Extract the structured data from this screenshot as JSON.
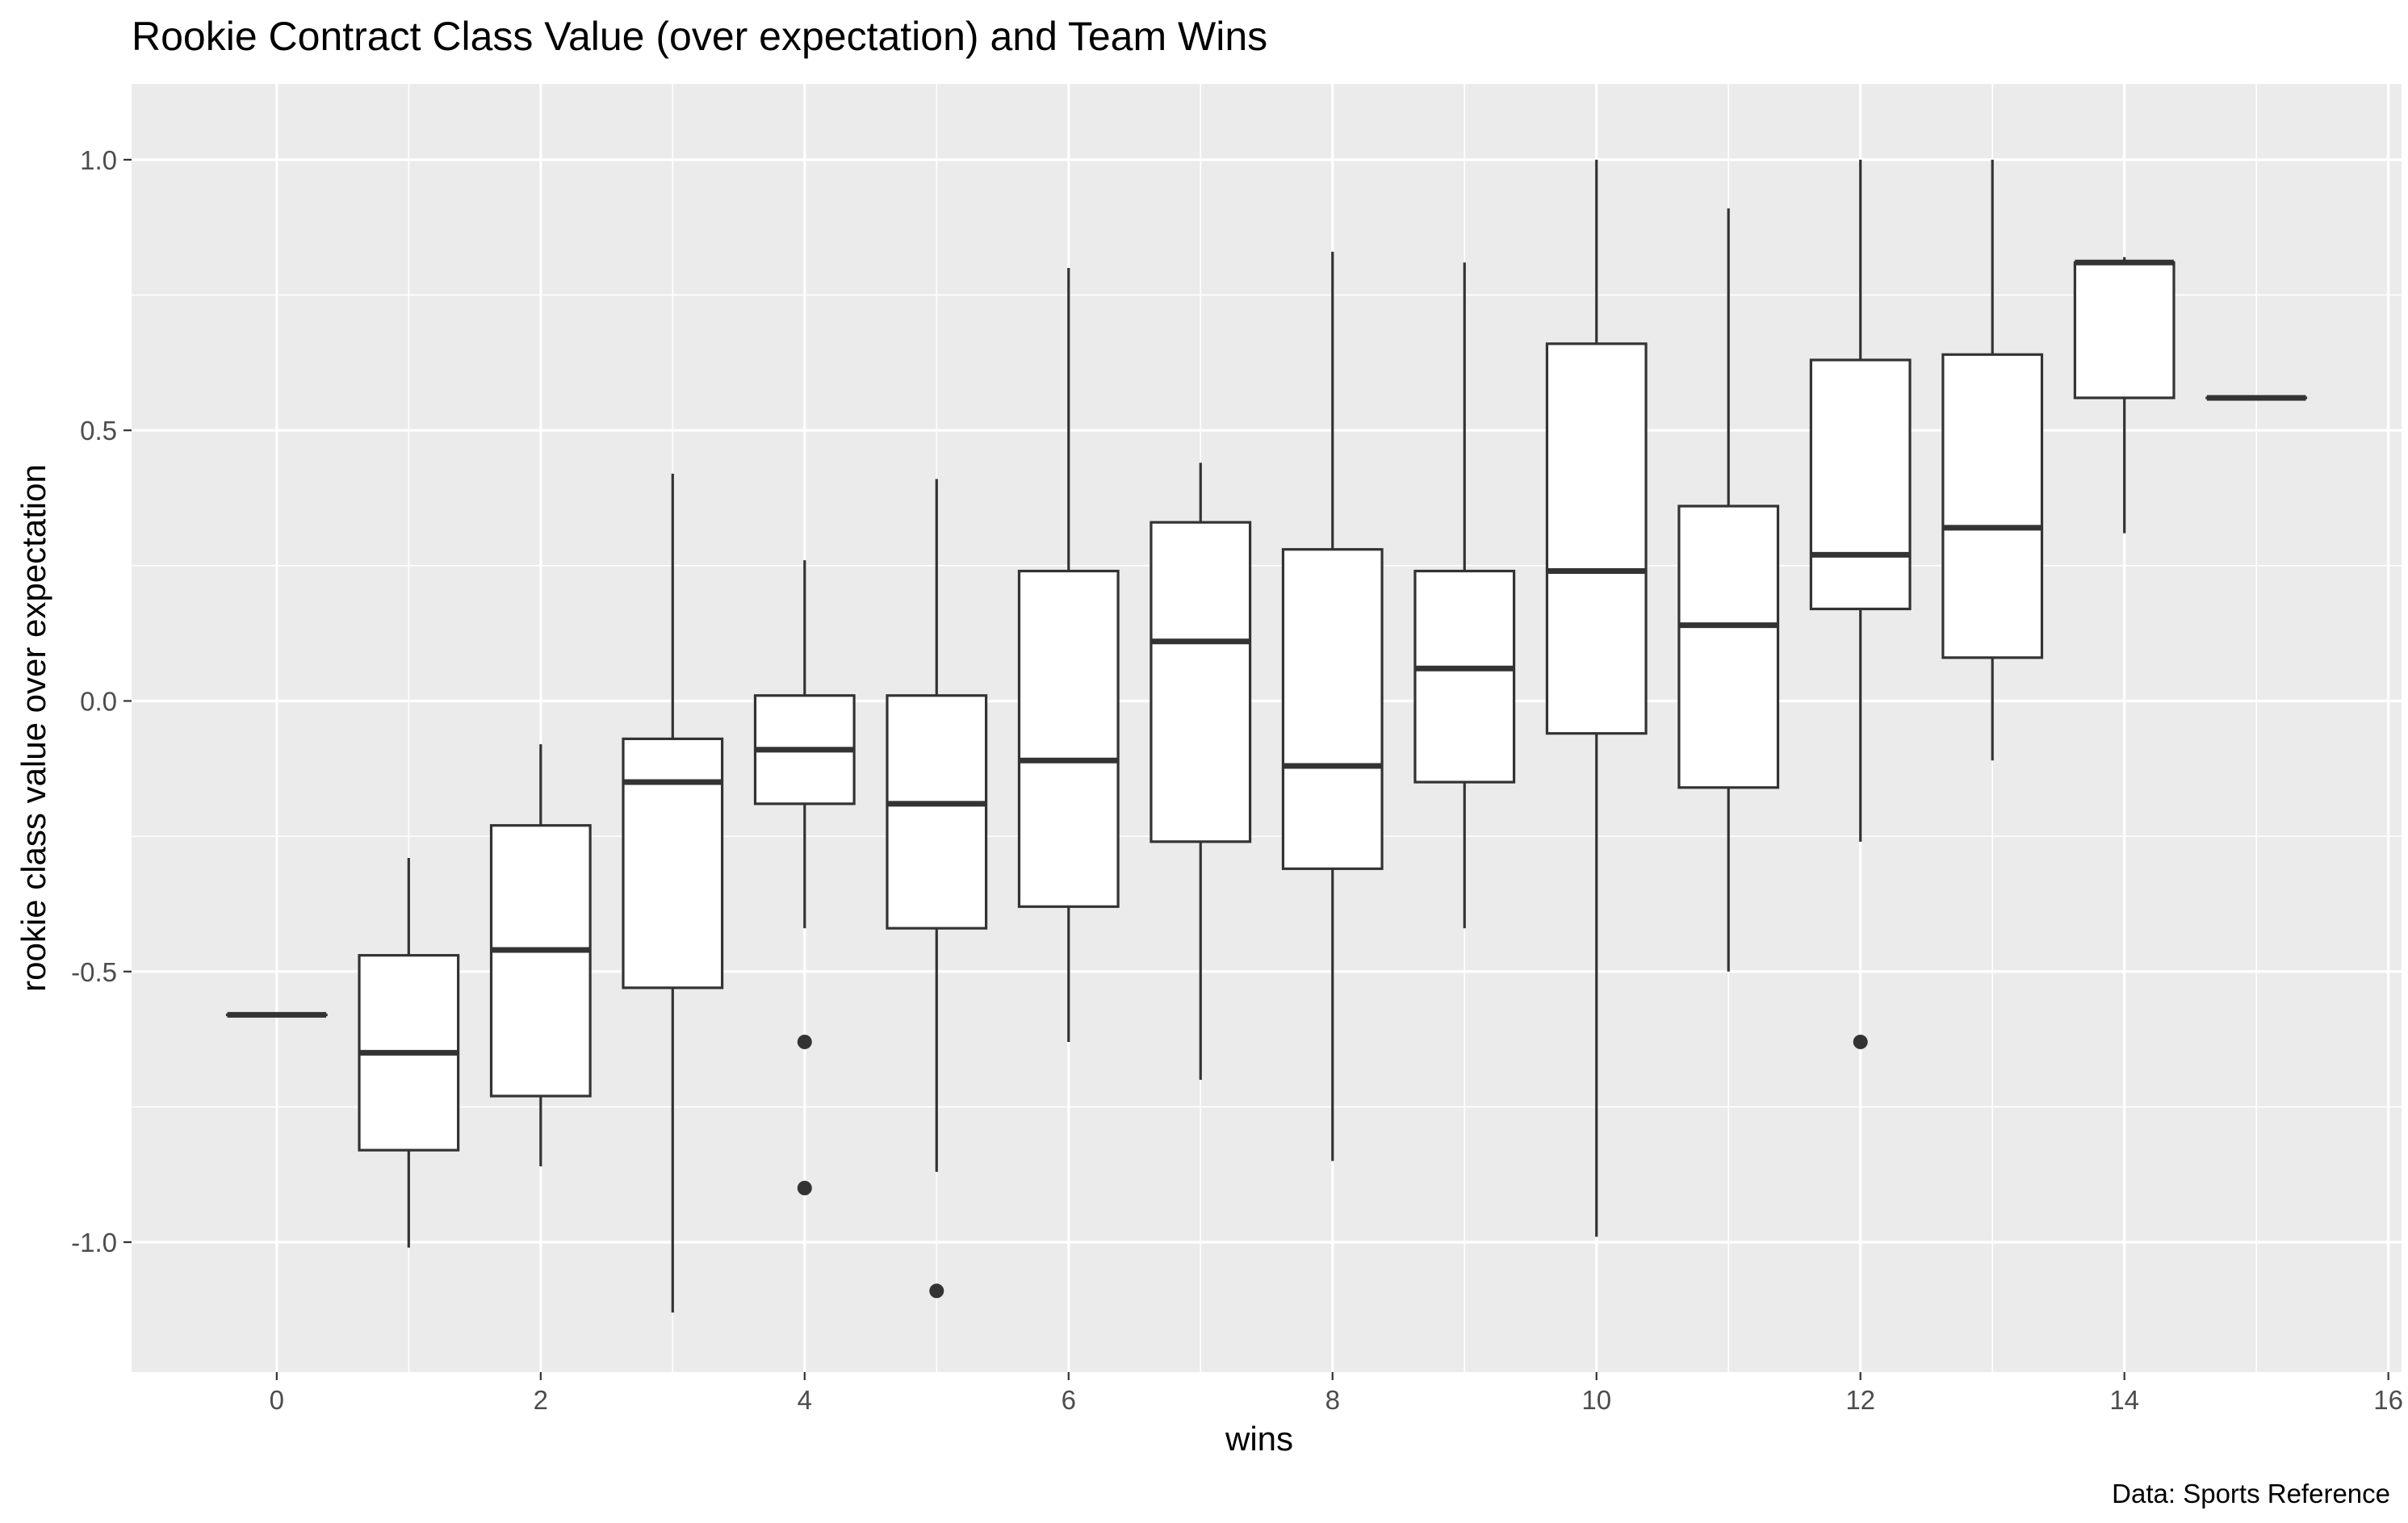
{
  "chart_data": {
    "type": "boxplot",
    "title": "Rookie Contract Class Value (over expectation) and Team Wins",
    "xlabel": "wins",
    "ylabel": "rookie class value over expectation",
    "caption": "Data: Sports Reference",
    "xlim": [
      -1.1,
      16.1
    ],
    "ylim": [
      -1.24,
      1.14
    ],
    "x_ticks": [
      0,
      2,
      4,
      6,
      8,
      10,
      12,
      14,
      16
    ],
    "x_tick_labels": [
      "0",
      "2",
      "4",
      "6",
      "8",
      "10",
      "12",
      "14",
      "16"
    ],
    "y_ticks": [
      -1.0,
      -0.5,
      0.0,
      0.5,
      1.0
    ],
    "y_tick_labels": [
      "-1.0",
      "-0.5",
      "0.0",
      "0.5",
      "1.0"
    ],
    "grid": true,
    "colors": {
      "panel": "#ebebeb",
      "grid": "#ffffff",
      "box_fill": "#ffffff",
      "box_line": "#333333"
    },
    "boxes": [
      {
        "x": 0,
        "whisker_low": -0.58,
        "q1": -0.58,
        "median": -0.58,
        "q3": -0.58,
        "whisker_high": -0.58,
        "outliers": []
      },
      {
        "x": 1,
        "whisker_low": -1.01,
        "q1": -0.83,
        "median": -0.65,
        "q3": -0.47,
        "whisker_high": -0.29,
        "outliers": []
      },
      {
        "x": 2,
        "whisker_low": -0.86,
        "q1": -0.73,
        "median": -0.46,
        "q3": -0.23,
        "whisker_high": -0.08,
        "outliers": []
      },
      {
        "x": 3,
        "whisker_low": -1.13,
        "q1": -0.53,
        "median": -0.15,
        "q3": -0.07,
        "whisker_high": 0.42,
        "outliers": []
      },
      {
        "x": 4,
        "whisker_low": -0.42,
        "q1": -0.19,
        "median": -0.09,
        "q3": 0.01,
        "whisker_high": 0.26,
        "outliers": [
          -0.63,
          -0.9
        ]
      },
      {
        "x": 5,
        "whisker_low": -0.87,
        "q1": -0.42,
        "median": -0.19,
        "q3": 0.01,
        "whisker_high": 0.41,
        "outliers": [
          -1.09
        ]
      },
      {
        "x": 6,
        "whisker_low": -0.63,
        "q1": -0.38,
        "median": -0.11,
        "q3": 0.24,
        "whisker_high": 0.8,
        "outliers": []
      },
      {
        "x": 7,
        "whisker_low": -0.7,
        "q1": -0.26,
        "median": 0.11,
        "q3": 0.33,
        "whisker_high": 0.44,
        "outliers": []
      },
      {
        "x": 8,
        "whisker_low": -0.85,
        "q1": -0.31,
        "median": -0.12,
        "q3": 0.28,
        "whisker_high": 0.83,
        "outliers": []
      },
      {
        "x": 9,
        "whisker_low": -0.42,
        "q1": -0.15,
        "median": 0.06,
        "q3": 0.24,
        "whisker_high": 0.81,
        "outliers": []
      },
      {
        "x": 10,
        "whisker_low": -0.99,
        "q1": -0.06,
        "median": 0.24,
        "q3": 0.66,
        "whisker_high": 1.0,
        "outliers": []
      },
      {
        "x": 11,
        "whisker_low": -0.5,
        "q1": -0.16,
        "median": 0.14,
        "q3": 0.36,
        "whisker_high": 0.91,
        "outliers": []
      },
      {
        "x": 12,
        "whisker_low": -0.26,
        "q1": 0.17,
        "median": 0.27,
        "q3": 0.63,
        "whisker_high": 1.0,
        "outliers": [
          -0.63
        ]
      },
      {
        "x": 13,
        "whisker_low": -0.11,
        "q1": 0.08,
        "median": 0.32,
        "q3": 0.64,
        "whisker_high": 1.0,
        "outliers": []
      },
      {
        "x": 14,
        "whisker_low": 0.31,
        "q1": 0.56,
        "median": 0.81,
        "q3": 0.81,
        "whisker_high": 0.82,
        "outliers": []
      },
      {
        "x": 15,
        "whisker_low": 0.56,
        "q1": 0.56,
        "median": 0.56,
        "q3": 0.56,
        "whisker_high": 0.56,
        "outliers": []
      }
    ]
  }
}
